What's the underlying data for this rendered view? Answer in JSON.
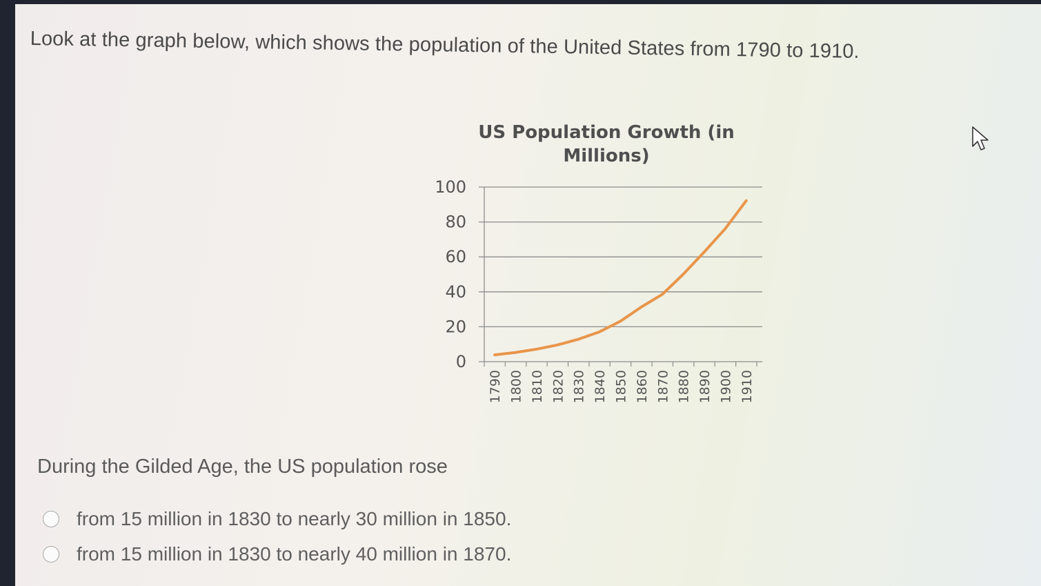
{
  "question": {
    "text": "Look at the graph below, which shows the population of the United States from 1790 to 1910."
  },
  "chart_data": {
    "type": "line",
    "title": "US Population Growth (in Millions)",
    "title_lines": [
      "US Population Growth (in",
      "Millions)"
    ],
    "x": [
      "1790",
      "1800",
      "1810",
      "1820",
      "1830",
      "1840",
      "1850",
      "1860",
      "1870",
      "1880",
      "1890",
      "1900",
      "1910"
    ],
    "series": [
      {
        "values": [
          3.9,
          5.3,
          7.2,
          9.6,
          12.9,
          17.1,
          23.2,
          31.4,
          38.6,
          50.2,
          62.9,
          76.2,
          92.2
        ]
      }
    ],
    "yticks": [
      "0",
      "20",
      "40",
      "60",
      "80",
      "100"
    ],
    "ylim": [
      0,
      100
    ],
    "grid": true,
    "line_color": "#e8954a"
  },
  "prompt": {
    "text": "During the Gilded Age, the US population rose"
  },
  "choices": [
    {
      "label": "from 15 million in 1830 to nearly 30 million in 1850."
    },
    {
      "label": "from 15 million in 1830 to nearly 40 million in 1870."
    }
  ]
}
